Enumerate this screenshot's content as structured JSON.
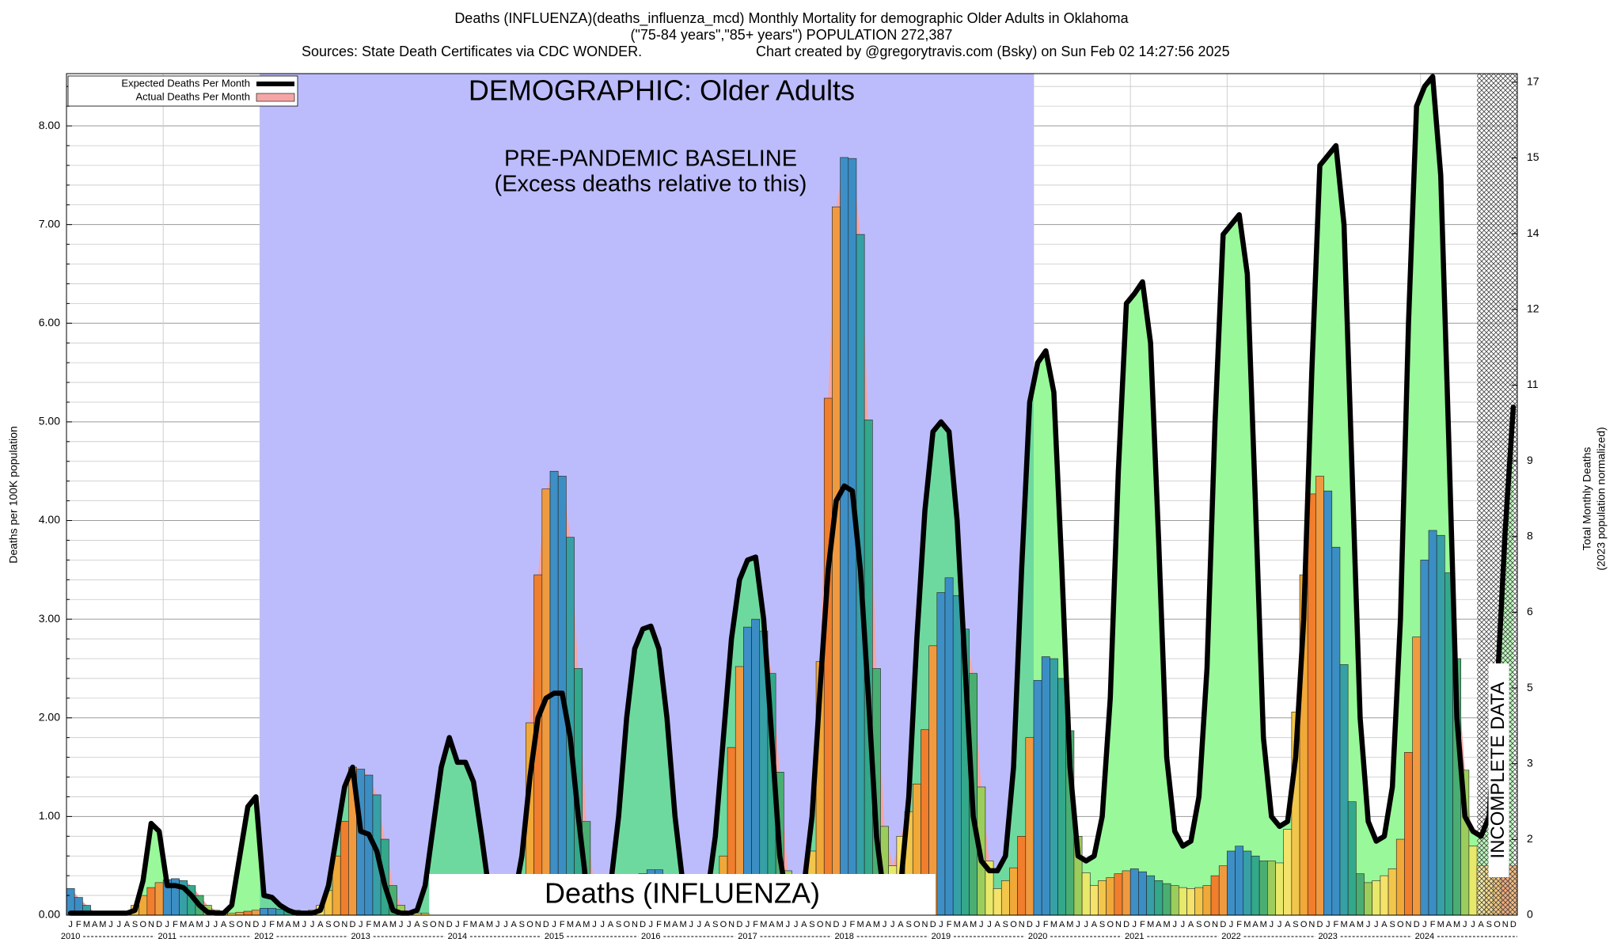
{
  "chart_data": {
    "type": "bar",
    "title": "Deaths (INFLUENZA)(deaths_influenza_mcd) Monthly Mortality for demographic Older Adults in Oklahoma",
    "subtitle": "(\"75-84 years\",\"85+ years\") POPULATION 272,387",
    "source": "Sources: State Death Certificates via CDC WONDER.",
    "credit": "Chart created by @gregorytravis.com (Bsky) on Sun Feb 02 14:27:56 2025",
    "annotations": {
      "demographic": "DEMOGRAPHIC: Older Adults",
      "baseline": "PRE-PANDEMIC BASELINE",
      "baseline_note": "(Excess deaths relative to this)",
      "cause": "Deaths (INFLUENZA)",
      "incomplete": "INCOMPLETE DATA"
    },
    "y_label": "Deaths per 100K population",
    "y2_label": [
      "Total Monthly Deaths",
      "(2023 population normalized)"
    ],
    "categories": [
      "J",
      "F",
      "M",
      "A",
      "M",
      "J",
      "J",
      "A",
      "S",
      "O",
      "N",
      "D",
      "J",
      "F",
      "M",
      "A",
      "M",
      "J",
      "J",
      "A",
      "S",
      "O",
      "N",
      "D",
      "J",
      "F",
      "M",
      "A",
      "M",
      "J",
      "J",
      "A",
      "S",
      "O",
      "N",
      "D",
      "J",
      "F",
      "M",
      "A",
      "M",
      "J",
      "J",
      "A",
      "S",
      "O",
      "N",
      "D",
      "J",
      "F",
      "M",
      "A",
      "M",
      "J",
      "J",
      "A",
      "S",
      "O",
      "N",
      "D",
      "J",
      "F",
      "M",
      "A",
      "M",
      "J",
      "J",
      "A",
      "S",
      "O",
      "N",
      "D",
      "J",
      "F",
      "M",
      "A",
      "M",
      "J",
      "J",
      "A",
      "S",
      "O",
      "N",
      "D",
      "J",
      "F",
      "M",
      "A",
      "M",
      "J",
      "J",
      "A",
      "S",
      "O",
      "N",
      "D",
      "J",
      "F",
      "M",
      "A",
      "M",
      "J",
      "J",
      "A",
      "S",
      "O",
      "N",
      "D",
      "J",
      "F",
      "M",
      "A",
      "M",
      "J",
      "J",
      "A",
      "S",
      "O",
      "N",
      "D",
      "J",
      "F",
      "M",
      "A",
      "M",
      "J",
      "J",
      "A",
      "S",
      "O",
      "N",
      "D",
      "J",
      "F",
      "M",
      "A",
      "M",
      "J",
      "J",
      "A",
      "S",
      "O",
      "N",
      "D",
      "J",
      "F",
      "M",
      "A",
      "M",
      "J",
      "J",
      "A",
      "S",
      "O",
      "N",
      "D",
      "J",
      "F",
      "M",
      "A",
      "M",
      "J",
      "J",
      "A",
      "S",
      "O",
      "N",
      "D",
      "J",
      "F",
      "M",
      "A",
      "M",
      "J",
      "J",
      "A",
      "S",
      "O",
      "N",
      "D"
    ],
    "year_labels": [
      "2010",
      "2011",
      "2012",
      "2013",
      "2014",
      "2015",
      "2016",
      "2017",
      "2018",
      "2019",
      "2020",
      "2021",
      "2022",
      "2023",
      "2024"
    ],
    "series": [
      {
        "name": "Expected Deaths Per Month",
        "type": "line",
        "color": "#000000",
        "values": [
          0.02,
          0.02,
          0.02,
          0.02,
          0.02,
          0.02,
          0.02,
          0.02,
          0.05,
          0.35,
          0.93,
          0.85,
          0.3,
          0.3,
          0.28,
          0.2,
          0.1,
          0.03,
          0.02,
          0.02,
          0.1,
          0.6,
          1.1,
          1.2,
          0.2,
          0.18,
          0.1,
          0.05,
          0.02,
          0.02,
          0.02,
          0.05,
          0.3,
          0.8,
          1.3,
          1.5,
          0.85,
          0.82,
          0.65,
          0.3,
          0.05,
          0.02,
          0.02,
          0.05,
          0.3,
          0.9,
          1.5,
          1.8,
          1.55,
          1.55,
          1.35,
          0.8,
          0.2,
          0.05,
          0.05,
          0.15,
          0.6,
          1.4,
          2.0,
          2.2,
          2.25,
          2.25,
          1.8,
          1.0,
          0.3,
          0.05,
          0.05,
          0.3,
          1.0,
          2.0,
          2.7,
          2.9,
          2.93,
          2.7,
          2.0,
          1.0,
          0.3,
          0.05,
          0.05,
          0.2,
          0.8,
          1.8,
          2.8,
          3.4,
          3.6,
          3.63,
          3.0,
          1.8,
          0.6,
          0.1,
          0.05,
          0.3,
          1.0,
          2.3,
          3.5,
          4.2,
          4.35,
          4.3,
          3.5,
          2.2,
          0.8,
          0.15,
          0.05,
          0.3,
          1.2,
          2.8,
          4.1,
          4.9,
          5.0,
          4.9,
          4.0,
          2.5,
          1.0,
          0.55,
          0.45,
          0.45,
          0.6,
          1.5,
          3.5,
          5.2,
          5.6,
          5.72,
          5.3,
          3.5,
          1.5,
          0.6,
          0.55,
          0.6,
          1.0,
          2.2,
          4.5,
          6.2,
          6.3,
          6.42,
          5.8,
          3.8,
          1.6,
          0.85,
          0.7,
          0.75,
          1.2,
          2.5,
          5.0,
          6.9,
          7.0,
          7.1,
          6.5,
          4.2,
          1.8,
          1.0,
          0.9,
          0.95,
          1.6,
          3.0,
          5.5,
          7.6,
          7.7,
          7.8,
          7.0,
          4.5,
          2.0,
          0.95,
          0.75,
          0.8,
          1.3,
          3.0,
          6.0,
          8.2,
          8.4,
          8.5,
          7.5,
          4.8,
          2.0,
          1.0,
          0.85,
          0.8,
          1.0,
          2.3,
          3.9,
          5.15
        ]
      },
      {
        "name": "Actual Deaths Per Month",
        "type": "bar",
        "color": "#f4a6a6",
        "values": [
          0.27,
          0.18,
          0.1,
          0.03,
          0.02,
          0.01,
          0.01,
          0.03,
          0.1,
          0.2,
          0.28,
          0.33,
          0.36,
          0.37,
          0.35,
          0.3,
          0.2,
          0.1,
          0.05,
          0.03,
          0.02,
          0.03,
          0.04,
          0.05,
          0.07,
          0.07,
          0.06,
          0.05,
          0.05,
          0.04,
          0.05,
          0.1,
          0.25,
          0.6,
          0.95,
          1.5,
          1.48,
          1.42,
          1.22,
          0.77,
          0.3,
          0.1,
          0.03,
          0.02,
          0.02,
          0.02,
          0.05,
          0.1,
          0.15,
          0.15,
          0.1,
          0.05,
          0.03,
          0.02,
          0.02,
          0.05,
          0.1,
          1.95,
          3.45,
          4.32,
          4.5,
          4.45,
          3.83,
          2.5,
          0.95,
          0.3,
          0.1,
          0.1,
          0.15,
          0.25,
          0.35,
          0.42,
          0.46,
          0.46,
          0.4,
          0.3,
          0.2,
          0.1,
          0.05,
          0.05,
          0.1,
          0.6,
          1.7,
          2.52,
          2.92,
          3.0,
          2.88,
          2.45,
          1.45,
          0.45,
          0.2,
          0.15,
          0.65,
          2.57,
          5.24,
          7.18,
          7.68,
          7.67,
          6.9,
          5.02,
          2.5,
          0.9,
          0.5,
          0.8,
          1.05,
          1.33,
          1.88,
          2.73,
          3.27,
          3.42,
          3.24,
          2.9,
          2.45,
          1.3,
          0.55,
          0.27,
          0.35,
          0.48,
          0.8,
          1.8,
          2.38,
          2.62,
          2.6,
          2.4,
          1.87,
          0.8,
          0.43,
          0.3,
          0.35,
          0.38,
          0.42,
          0.45,
          0.47,
          0.44,
          0.4,
          0.35,
          0.32,
          0.3,
          0.28,
          0.27,
          0.28,
          0.3,
          0.4,
          0.5,
          0.65,
          0.7,
          0.65,
          0.6,
          0.55,
          0.55,
          0.53,
          0.87,
          2.06,
          3.45,
          4.27,
          4.45,
          4.3,
          3.73,
          2.54,
          1.15,
          0.42,
          0.33,
          0.35,
          0.4,
          0.47,
          0.77,
          1.65,
          2.82,
          3.6,
          3.9,
          3.85,
          3.47,
          2.6,
          1.47,
          0.7,
          0.5,
          0.5,
          0.5,
          0.5,
          0.5
        ]
      }
    ],
    "month_colors": [
      "#3d8fc6",
      "#3b8ec4",
      "#36a0a6",
      "#33a88a",
      "#4aae72",
      "#9ccd5c",
      "#e8e86a",
      "#f4e26a",
      "#f2c64a",
      "#f0a838",
      "#f07e2c",
      "#f09a40"
    ],
    "area_color": "#99f899",
    "baseline_area_color": "#6ed99e",
    "baseline_color": "#bcbcfc",
    "ylim": [
      0,
      8.53
    ],
    "yticks": [
      {
        "value": 0,
        "label": "0.00"
      },
      {
        "value": 1,
        "label": "1.00"
      },
      {
        "value": 2,
        "label": "2.00"
      },
      {
        "value": 3,
        "label": "3.00"
      },
      {
        "value": 4,
        "label": "4.00"
      },
      {
        "value": 5,
        "label": "5.00"
      },
      {
        "value": 6,
        "label": "6.00"
      },
      {
        "value": 7,
        "label": "7.00"
      },
      {
        "value": 8,
        "label": "8.00"
      }
    ],
    "minor_yticks": [
      0.2,
      0.4,
      0.6,
      0.8,
      1.2,
      1.4,
      1.6,
      1.8,
      2.2,
      2.4,
      2.6,
      2.8,
      3.2,
      3.4,
      3.6,
      3.8,
      4.2,
      4.4,
      4.6,
      4.8,
      5.2,
      5.4,
      5.6,
      5.8,
      6.2,
      6.4,
      6.6,
      6.8,
      7.2,
      7.4,
      7.6,
      7.8,
      8.2,
      8.4
    ],
    "y2lim": [
      0,
      16.67
    ],
    "y2ticks": [
      0,
      {
        "value": 1.5,
        "label": "2"
      },
      3,
      {
        "value": 4.5,
        "label": "5"
      },
      6,
      {
        "value": 7.5,
        "label": "8"
      },
      9,
      {
        "value": 10.5,
        "label": "11"
      },
      12,
      {
        "value": 13.5,
        "label": "14"
      },
      15,
      {
        "value": 16.5,
        "label": "17"
      }
    ],
    "grid": true,
    "legend": "top-left"
  }
}
